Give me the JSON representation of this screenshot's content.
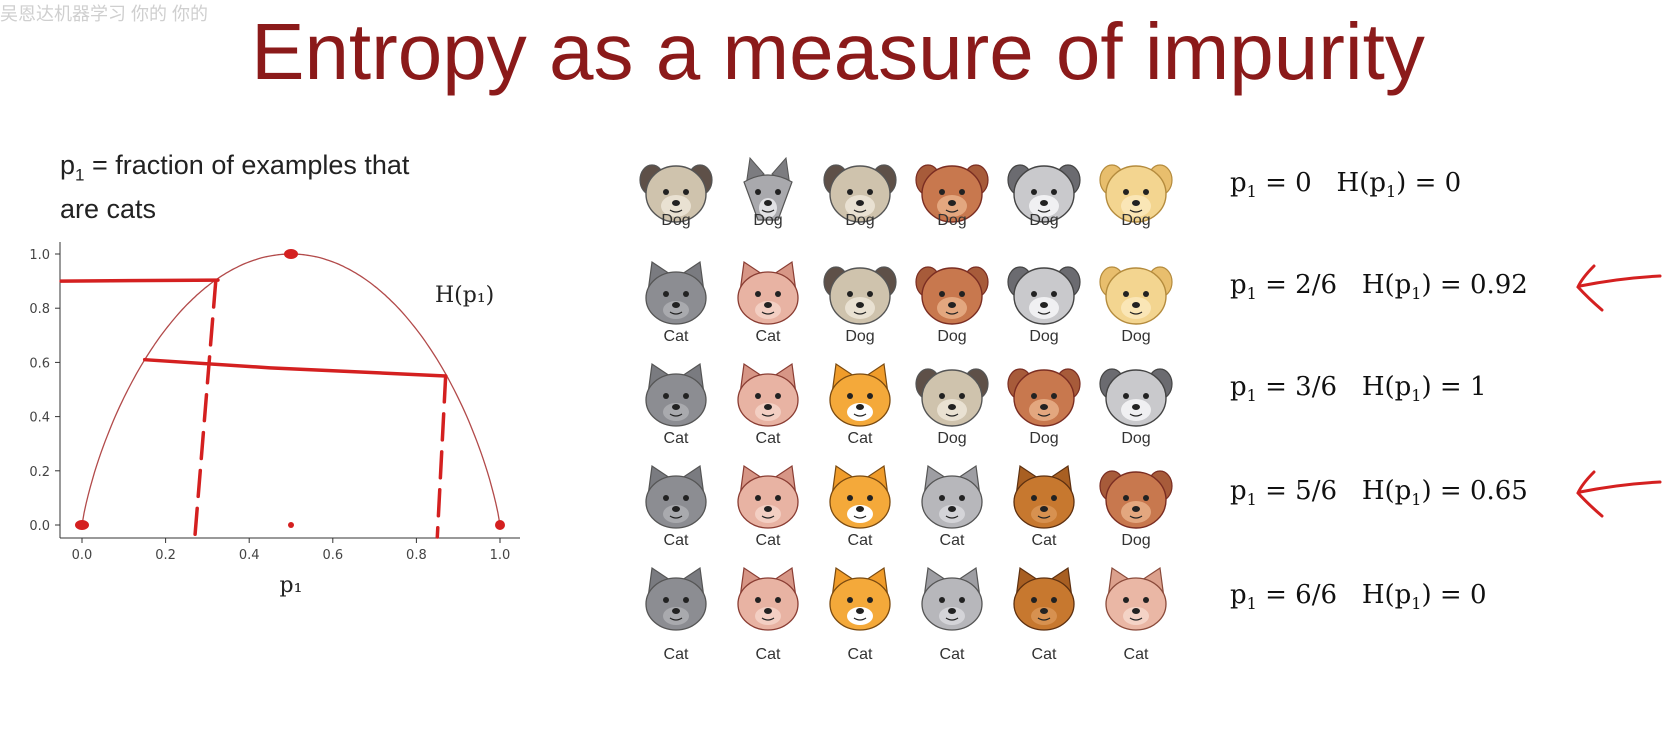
{
  "watermark": "吴恩达机器学习 你的 你的",
  "title": "Entropy as a measure of impurity",
  "definition": {
    "sym": "p",
    "sub": "1",
    "text_line1": " = fraction of examples that",
    "text_line2": "are cats"
  },
  "chart_data": {
    "type": "line",
    "function": "entropy",
    "curve_label": "H(p₁)",
    "xlabel": "p₁",
    "ylabel": "",
    "xlim": [
      0.0,
      1.0
    ],
    "ylim": [
      0.0,
      1.0
    ],
    "x_ticks": [
      "0.0",
      "0.2",
      "0.4",
      "0.6",
      "0.8",
      "1.0"
    ],
    "y_ticks": [
      "0.0",
      "0.2",
      "0.4",
      "0.6",
      "0.8",
      "1.0"
    ],
    "series": [
      {
        "x": [
          0,
          0.02,
          0.05,
          0.1,
          0.15,
          0.2,
          0.25,
          0.3,
          0.333,
          0.4,
          0.45,
          0.5,
          0.55,
          0.6,
          0.667,
          0.7,
          0.75,
          0.8,
          0.833,
          0.85,
          0.9,
          0.95,
          0.98,
          1.0
        ],
        "y": [
          0,
          0.141,
          0.286,
          0.469,
          0.61,
          0.722,
          0.811,
          0.881,
          0.918,
          0.971,
          0.993,
          1.0,
          0.993,
          0.971,
          0.918,
          0.881,
          0.811,
          0.722,
          0.65,
          0.61,
          0.469,
          0.286,
          0.141,
          0
        ]
      }
    ],
    "annotations": {
      "points": [
        {
          "x": 0.0,
          "y": 0.0
        },
        {
          "x": 0.5,
          "y": 1.0
        },
        {
          "x": 1.0,
          "y": 0.0
        },
        {
          "x": 0.5,
          "y": 0.0
        }
      ],
      "horizontal_marks": [
        {
          "y": 0.9,
          "x_from": -0.05,
          "x_to": 0.33
        },
        {
          "y": 0.61,
          "y2": 0.55,
          "x_from": 0.15,
          "x_to": 0.87
        }
      ],
      "vertical_dashes": [
        {
          "x_top": 0.32,
          "y_top": 0.9,
          "x_bottom": 0.27
        },
        {
          "x_top": 0.87,
          "y_top": 0.55,
          "x_bottom": 0.85
        }
      ]
    },
    "annotation_color": "#d42020",
    "curve_color": "#b24a4a"
  },
  "grid": {
    "rows": [
      {
        "cells": [
          {
            "animal": "pug",
            "label": "Dog"
          },
          {
            "animal": "husky",
            "label": "Dog"
          },
          {
            "animal": "pug",
            "label": "Dog"
          },
          {
            "animal": "brown-dog",
            "label": "Dog"
          },
          {
            "animal": "grey-dog",
            "label": "Dog"
          },
          {
            "animal": "yellow-dog",
            "label": "Dog"
          }
        ]
      },
      {
        "cells": [
          {
            "animal": "grey-cat",
            "label": "Cat"
          },
          {
            "animal": "pink-cat",
            "label": "Cat"
          },
          {
            "animal": "pug",
            "label": "Dog"
          },
          {
            "animal": "brown-dog",
            "label": "Dog"
          },
          {
            "animal": "grey-dog",
            "label": "Dog"
          },
          {
            "animal": "yellow-dog",
            "label": "Dog"
          }
        ]
      },
      {
        "cells": [
          {
            "animal": "grey-cat",
            "label": "Cat"
          },
          {
            "animal": "pink-cat",
            "label": "Cat"
          },
          {
            "animal": "orange-cat",
            "label": "Cat"
          },
          {
            "animal": "pug",
            "label": "Dog"
          },
          {
            "animal": "brown-dog",
            "label": "Dog"
          },
          {
            "animal": "grey-dog",
            "label": "Dog"
          }
        ]
      },
      {
        "cells": [
          {
            "animal": "grey-cat",
            "label": "Cat"
          },
          {
            "animal": "pink-cat",
            "label": "Cat"
          },
          {
            "animal": "orange-cat",
            "label": "Cat"
          },
          {
            "animal": "silver-cat",
            "label": "Cat"
          },
          {
            "animal": "brown-cat",
            "label": "Cat"
          },
          {
            "animal": "brown-dog",
            "label": "Dog"
          }
        ]
      },
      {
        "cells": [
          {
            "animal": "grey-cat",
            "label": "Cat"
          },
          {
            "animal": "pink-cat",
            "label": "Cat"
          },
          {
            "animal": "orange-cat",
            "label": "Cat"
          },
          {
            "animal": "silver-cat",
            "label": "Cat"
          },
          {
            "animal": "brown-cat",
            "label": "Cat"
          },
          {
            "animal": "tan-cat",
            "label": "Cat"
          }
        ]
      }
    ]
  },
  "equations": [
    {
      "p_value": "0",
      "h_value": "0",
      "arrow": false
    },
    {
      "p_value": "2/6",
      "h_value": "0.92",
      "arrow": true
    },
    {
      "p_value": "3/6",
      "h_value": "1",
      "arrow": false
    },
    {
      "p_value": "5/6",
      "h_value": "0.65",
      "arrow": true
    },
    {
      "p_value": "6/6",
      "h_value": "0",
      "arrow": false
    }
  ],
  "equation_tokens": {
    "p": "p",
    "sub": "1",
    "eq": " = ",
    "h_prefix": "H(p",
    "h_suffix": ") = "
  },
  "colors": {
    "title": "#8b1a1a",
    "annotation_red": "#d42020"
  }
}
